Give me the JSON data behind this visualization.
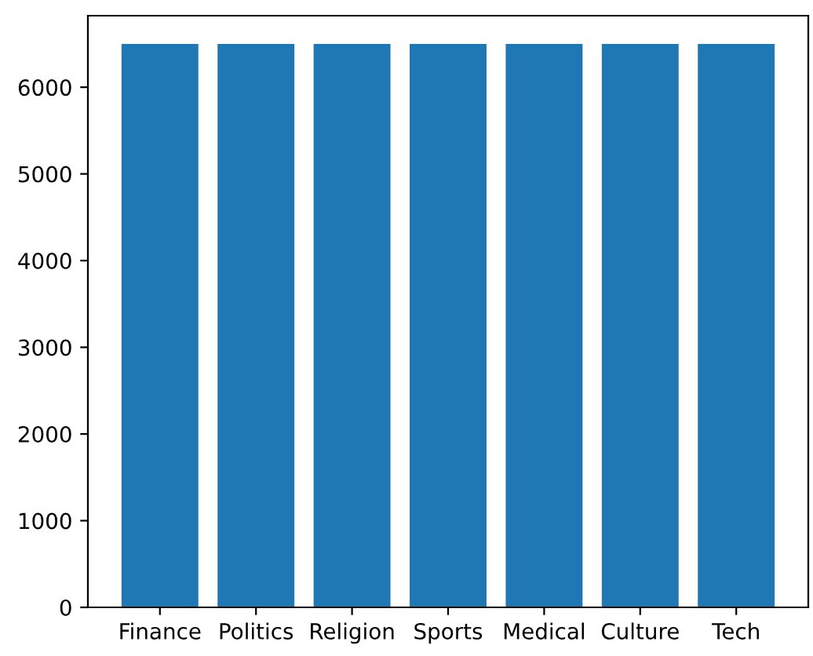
{
  "chart_data": {
    "type": "bar",
    "categories": [
      "Finance",
      "Politics",
      "Religion",
      "Sports",
      "Medical",
      "Culture",
      "Tech"
    ],
    "values": [
      6500,
      6500,
      6500,
      6500,
      6500,
      6500,
      6500
    ],
    "color": "#1f77b4",
    "ylim": [
      0,
      6825
    ],
    "yticks": [
      0,
      1000,
      2000,
      3000,
      4000,
      5000,
      6000
    ],
    "grid": false,
    "legend": false
  }
}
